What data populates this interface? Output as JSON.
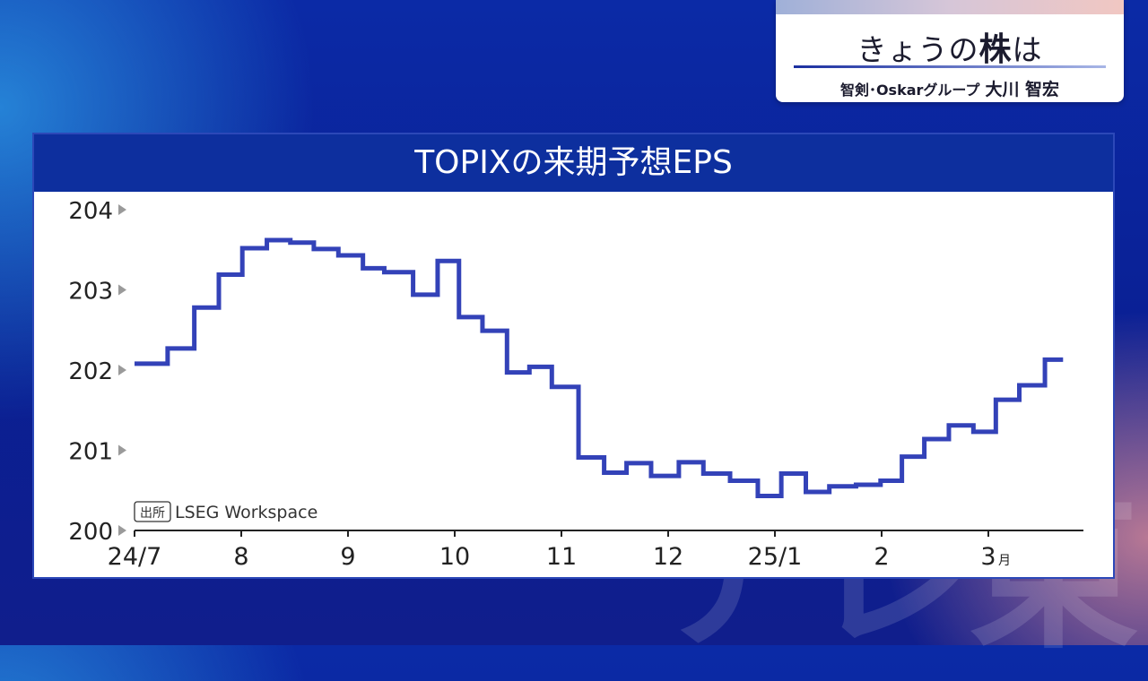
{
  "watermark": "テレ東",
  "corner": {
    "title_prefix": "きょうの",
    "title_strong": "株",
    "title_suffix": "は",
    "org": "智剣･Oskarグループ",
    "name": "大川 智宏"
  },
  "colors": {
    "line": "#3342b8",
    "line_light": "#8a97d8",
    "header": "#0d2f9e"
  },
  "chart_data": {
    "type": "line",
    "title": "TOPIXの来期予想EPS",
    "source": "LSEG Workspace",
    "source_badge": "出所",
    "ylim": [
      200,
      204
    ],
    "yticks": [
      200,
      201,
      202,
      203,
      204
    ],
    "xlabel": "",
    "ylabel": "",
    "x_tick_labels": [
      {
        "label": "24/7",
        "t": 0.0
      },
      {
        "label": "8",
        "t": 1.0
      },
      {
        "label": "9",
        "t": 2.0
      },
      {
        "label": "10",
        "t": 3.0
      },
      {
        "label": "11",
        "t": 4.0
      },
      {
        "label": "12",
        "t": 5.0
      },
      {
        "label": "25/1",
        "t": 6.0
      },
      {
        "label": "2",
        "t": 7.0
      },
      {
        "label": "3",
        "t": 8.0,
        "suffix": "月"
      }
    ],
    "x_end": 8.95,
    "series": [
      {
        "steps": [
          [
            0.0,
            202.08
          ],
          [
            0.31,
            202.27
          ],
          [
            0.56,
            202.78
          ],
          [
            0.79,
            203.19
          ],
          [
            1.01,
            203.52
          ],
          [
            1.24,
            203.62
          ],
          [
            1.46,
            203.59
          ],
          [
            1.68,
            203.51
          ],
          [
            1.91,
            203.43
          ],
          [
            2.14,
            203.27
          ],
          [
            2.34,
            203.22
          ],
          [
            2.61,
            202.94
          ],
          [
            2.84,
            203.36
          ],
          [
            3.04,
            202.66
          ],
          [
            3.26,
            202.49
          ],
          [
            3.49,
            201.97
          ],
          [
            3.7,
            202.04
          ],
          [
            3.91,
            201.79
          ],
          [
            4.16,
            200.91
          ],
          [
            4.4,
            200.72
          ],
          [
            4.61,
            200.84
          ],
          [
            4.84,
            200.68
          ],
          [
            5.1,
            200.85
          ],
          [
            5.33,
            200.71
          ],
          [
            5.58,
            200.62
          ],
          [
            5.84,
            200.43
          ],
          [
            6.06,
            200.71
          ],
          [
            6.29,
            200.48
          ],
          [
            6.51,
            200.55
          ],
          [
            6.76,
            200.57
          ],
          [
            6.99,
            200.62
          ],
          [
            7.19,
            200.92
          ],
          [
            7.4,
            201.14
          ],
          [
            7.63,
            201.31
          ],
          [
            7.86,
            201.23
          ],
          [
            8.07,
            201.63
          ],
          [
            8.29,
            201.81
          ],
          [
            8.53,
            202.13
          ],
          [
            8.7,
            202.13
          ]
        ]
      }
    ]
  }
}
